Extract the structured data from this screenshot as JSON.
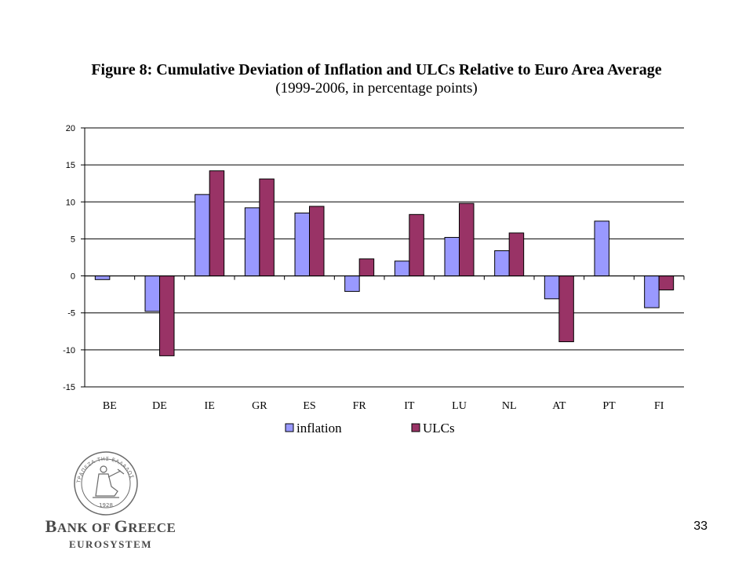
{
  "chart_data": {
    "type": "bar",
    "title": "Figure 8: Cumulative Deviation of Inflation and ULCs Relative to Euro Area Average",
    "subtitle": "(1999-2006, in percentage points)",
    "xlabel": "",
    "ylabel": "",
    "ylim": [
      -15,
      20
    ],
    "yticks": [
      -15,
      -10,
      -5,
      0,
      5,
      10,
      15,
      20
    ],
    "categories": [
      "BE",
      "DE",
      "IE",
      "GR",
      "ES",
      "FR",
      "IT",
      "LU",
      "NL",
      "AT",
      "PT",
      "FI"
    ],
    "series": [
      {
        "name": "inflation",
        "color": "#9999ff",
        "values": [
          -0.5,
          -4.8,
          11.0,
          9.2,
          8.5,
          -2.1,
          2.0,
          5.2,
          3.4,
          -3.1,
          7.4,
          -4.3
        ]
      },
      {
        "name": "ULCs",
        "color": "#993366",
        "values": [
          0.0,
          -10.8,
          14.2,
          13.1,
          9.4,
          2.3,
          8.3,
          9.8,
          5.8,
          -8.9,
          0.0,
          -1.9
        ]
      }
    ],
    "grid": true,
    "legend": "bottom"
  },
  "logo": {
    "name_first": "B",
    "name_rest": "ANK OF ",
    "name_second": "G",
    "name_second_rest": "REECE",
    "subtitle": "EUROSYSTEM",
    "seal_text": "ΤΡΑΠΕΖΑ ΤΗΣ ΕΛΛΑΔΟΣ",
    "seal_year": "1928"
  },
  "page_number": "33"
}
